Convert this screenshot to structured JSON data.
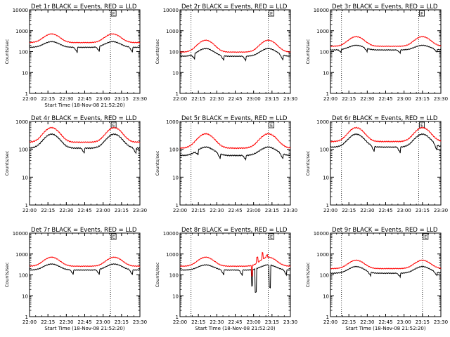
{
  "colors": {
    "events": "#000000",
    "lld": "#ff0000",
    "axis": "#000000",
    "background": "#ffffff"
  },
  "chart_data": [
    {
      "type": "line",
      "title": "Det 1r BLACK = Events, RED = LLD",
      "xlabel": "Start Time (18-Nov-08 21:52:20)",
      "ylabel": "Counts/sec",
      "yscale": "log",
      "ylim": [
        1,
        10000
      ],
      "yticks": [
        "1",
        "10",
        "100",
        "1000",
        "10000"
      ],
      "xlim": [
        22.0,
        23.5
      ],
      "xticks": [
        "22:00",
        "22:15",
        "22:30",
        "22:45",
        "23:00",
        "23:15",
        "23:30"
      ],
      "vlines": [
        22.0,
        23.1
      ],
      "marker_label": "E",
      "marker_x": 23.1,
      "series": [
        {
          "name": "Events",
          "color": "#000000",
          "base": 160,
          "peak": 300,
          "peak_times": [
            22.3,
            23.13
          ],
          "width": 0.13,
          "step_times": [
            22.65,
            22.95,
            23.4
          ],
          "step_drop": 0.55
        },
        {
          "name": "LLD",
          "color": "#ff0000",
          "base": 270,
          "peak": 700,
          "peak_times": [
            22.3,
            23.13
          ],
          "width": 0.13
        }
      ]
    },
    {
      "type": "line",
      "title": "Det 2r BLACK = Events, RED = LLD",
      "xlabel": "",
      "ylabel": "Counts/sec",
      "yscale": "log",
      "ylim": [
        1,
        10000
      ],
      "yticks": [
        "1",
        "10",
        "100",
        "1000",
        "10000"
      ],
      "xlim": [
        22.0,
        23.5
      ],
      "xticks": [
        "22:00",
        "22:15",
        "22:30",
        "22:45",
        "23:00",
        "23:15",
        "23:30"
      ],
      "vlines": [
        22.15,
        23.2
      ],
      "marker_label": "E",
      "marker_x": 23.2,
      "series": [
        {
          "name": "Events",
          "color": "#000000",
          "base": 60,
          "peak": 140,
          "peak_times": [
            22.35,
            23.2
          ],
          "width": 0.13,
          "step_times": [
            22.2,
            22.6,
            22.9,
            23.4
          ],
          "step_drop": 0.55
        },
        {
          "name": "LLD",
          "color": "#ff0000",
          "base": 95,
          "peak": 350,
          "peak_times": [
            22.35,
            23.2
          ],
          "width": 0.13
        }
      ]
    },
    {
      "type": "line",
      "title": "Det 3r BLACK = Events, RED = LLD",
      "xlabel": "",
      "ylabel": "Counts/sec",
      "yscale": "log",
      "ylim": [
        1,
        10000
      ],
      "yticks": [
        "1",
        "10",
        "100",
        "1000",
        "10000"
      ],
      "xlim": [
        22.0,
        23.5
      ],
      "xticks": [
        "22:00",
        "22:15",
        "22:30",
        "22:45",
        "23:00",
        "23:15",
        "23:30"
      ],
      "vlines": [
        22.15,
        23.2
      ],
      "marker_label": "E",
      "marker_x": 23.2,
      "series": [
        {
          "name": "Events",
          "color": "#000000",
          "base": 120,
          "peak": 200,
          "peak_times": [
            22.35,
            23.25
          ],
          "width": 0.13,
          "step_times": [
            22.15,
            22.5,
            22.95,
            23.45
          ],
          "step_drop": 0.7
        },
        {
          "name": "LLD",
          "color": "#ff0000",
          "base": 180,
          "peak": 520,
          "peak_times": [
            22.35,
            23.25
          ],
          "width": 0.13
        }
      ]
    },
    {
      "type": "line",
      "title": "Det 4r BLACK = Events, RED = LLD",
      "xlabel": "",
      "ylabel": "Counts/sec",
      "yscale": "log",
      "ylim": [
        1,
        1000
      ],
      "yticks": [
        "1",
        "10",
        "100",
        "1000"
      ],
      "xlim": [
        22.0,
        23.5
      ],
      "xticks": [
        "22:00",
        "22:15",
        "22:30",
        "22:45",
        "23:00",
        "23:15",
        "23:30"
      ],
      "vlines": [
        22.0,
        23.1
      ],
      "marker_label": "E",
      "marker_x": 23.1,
      "series": [
        {
          "name": "Events",
          "color": "#000000",
          "base": 110,
          "peak": 350,
          "peak_times": [
            22.3,
            23.15
          ],
          "width": 0.13,
          "step_times": [
            22.75,
            23.45
          ],
          "step_drop": 0.6
        },
        {
          "name": "LLD",
          "color": "#ff0000",
          "base": 180,
          "peak": 600,
          "peak_times": [
            22.3,
            23.15
          ],
          "width": 0.13
        }
      ]
    },
    {
      "type": "line",
      "title": "Det 5r BLACK = Events, RED = LLD",
      "xlabel": "",
      "ylabel": "Counts/sec",
      "yscale": "log",
      "ylim": [
        1,
        1000
      ],
      "yticks": [
        "1",
        "10",
        "100",
        "1000"
      ],
      "xlim": [
        22.0,
        23.5
      ],
      "xticks": [
        "22:00",
        "22:15",
        "22:30",
        "22:45",
        "23:00",
        "23:15",
        "23:30"
      ],
      "vlines": [
        22.15,
        23.2
      ],
      "marker_label": "E",
      "marker_x": 23.2,
      "series": [
        {
          "name": "Events",
          "color": "#000000",
          "base": 60,
          "peak": 120,
          "peak_times": [
            22.35,
            23.2
          ],
          "width": 0.14,
          "step_times": [
            22.25,
            22.55,
            22.9,
            23.4
          ],
          "step_drop": 0.65
        },
        {
          "name": "LLD",
          "color": "#ff0000",
          "base": 110,
          "peak": 360,
          "peak_times": [
            22.35,
            23.2
          ],
          "width": 0.14
        }
      ]
    },
    {
      "type": "line",
      "title": "Det 6r BLACK = Events, RED = LLD",
      "xlabel": "",
      "ylabel": "Counts/sec",
      "yscale": "log",
      "ylim": [
        1,
        1000
      ],
      "yticks": [
        "1",
        "10",
        "100",
        "1000"
      ],
      "xlim": [
        22.0,
        23.5
      ],
      "xticks": [
        "22:00",
        "22:15",
        "22:30",
        "22:45",
        "23:00",
        "23:15",
        "23:30"
      ],
      "vlines": [
        22.15,
        23.2
      ],
      "marker_label": "E",
      "marker_x": 23.2,
      "series": [
        {
          "name": "Events",
          "color": "#000000",
          "base": 120,
          "peak": 350,
          "peak_times": [
            22.35,
            23.25
          ],
          "width": 0.13,
          "step_times": [
            22.6,
            22.95,
            23.45
          ],
          "step_drop": 0.6
        },
        {
          "name": "LLD",
          "color": "#ff0000",
          "base": 190,
          "peak": 600,
          "peak_times": [
            22.35,
            23.25
          ],
          "width": 0.13
        }
      ]
    },
    {
      "type": "line",
      "title": "Det 7r BLACK = Events, RED = LLD",
      "xlabel": "Start Time (18-Nov-08 21:52:20)",
      "ylabel": "Counts/sec",
      "yscale": "log",
      "ylim": [
        1,
        10000
      ],
      "yticks": [
        "1",
        "10",
        "100",
        "1000",
        "10000"
      ],
      "xlim": [
        22.0,
        23.5
      ],
      "xticks": [
        "22:00",
        "22:15",
        "22:30",
        "22:45",
        "23:00",
        "23:15",
        "23:30"
      ],
      "vlines": [
        22.0,
        23.1
      ],
      "marker_label": "E",
      "marker_x": 23.1,
      "series": [
        {
          "name": "Events",
          "color": "#000000",
          "base": 170,
          "peak": 330,
          "peak_times": [
            22.3,
            23.15
          ],
          "width": 0.13,
          "step_times": [
            22.6,
            22.95,
            23.4
          ],
          "step_drop": 0.55
        },
        {
          "name": "LLD",
          "color": "#ff0000",
          "base": 260,
          "peak": 700,
          "peak_times": [
            22.3,
            23.15
          ],
          "width": 0.13
        }
      ]
    },
    {
      "type": "line",
      "title": "Det 8r BLACK = Events, RED = LLD",
      "xlabel": "Start Time (18-Nov-08 21:52:20)",
      "ylabel": "Counts/sec",
      "yscale": "log",
      "ylim": [
        1,
        10000
      ],
      "yticks": [
        "1",
        "10",
        "100",
        "1000",
        "10000"
      ],
      "xlim": [
        22.0,
        23.5
      ],
      "xticks": [
        "22:00",
        "22:15",
        "22:30",
        "22:45",
        "23:00",
        "23:15",
        "23:30"
      ],
      "vlines": [
        22.15,
        23.2
      ],
      "marker_label": "E",
      "marker_x": 23.2,
      "series": [
        {
          "name": "Events",
          "color": "#000000",
          "base": 170,
          "peak": 300,
          "peak_times": [
            22.35,
            23.2
          ],
          "width": 0.13,
          "step_times": [
            22.6,
            22.85,
            23.45
          ],
          "step_drop": 0.5,
          "spikes": [
            [
              22.98,
              30
            ],
            [
              23.03,
              15
            ],
            [
              23.18,
              300
            ],
            [
              23.22,
              25
            ]
          ]
        },
        {
          "name": "LLD",
          "color": "#ff0000",
          "base": 260,
          "peak": 700,
          "peak_times": [
            22.35,
            23.2
          ],
          "width": 0.13,
          "spikes": [
            [
              22.98,
              90
            ],
            [
              23.05,
              700
            ],
            [
              23.12,
              1200
            ],
            [
              23.18,
              900
            ]
          ]
        }
      ]
    },
    {
      "type": "line",
      "title": "Det 9r BLACK = Events, RED = LLD",
      "xlabel": "Start Time (18-Nov-08 21:52:20)",
      "ylabel": "Counts/sec",
      "yscale": "log",
      "ylim": [
        1,
        10000
      ],
      "yticks": [
        "1",
        "10",
        "100",
        "1000",
        "10000"
      ],
      "xlim": [
        22.0,
        23.5
      ],
      "xticks": [
        "22:00",
        "22:15",
        "22:30",
        "22:45",
        "23:00",
        "23:15",
        "23:30"
      ],
      "vlines": [
        22.15,
        23.25
      ],
      "marker_label": "E",
      "marker_x": 23.25,
      "series": [
        {
          "name": "Events",
          "color": "#000000",
          "base": 120,
          "peak": 250,
          "peak_times": [
            22.35,
            23.25
          ],
          "width": 0.13,
          "step_times": [
            22.55,
            22.95,
            23.45
          ],
          "step_drop": 0.65
        },
        {
          "name": "LLD",
          "color": "#ff0000",
          "base": 200,
          "peak": 500,
          "peak_times": [
            22.35,
            23.25
          ],
          "width": 0.13
        }
      ]
    }
  ]
}
